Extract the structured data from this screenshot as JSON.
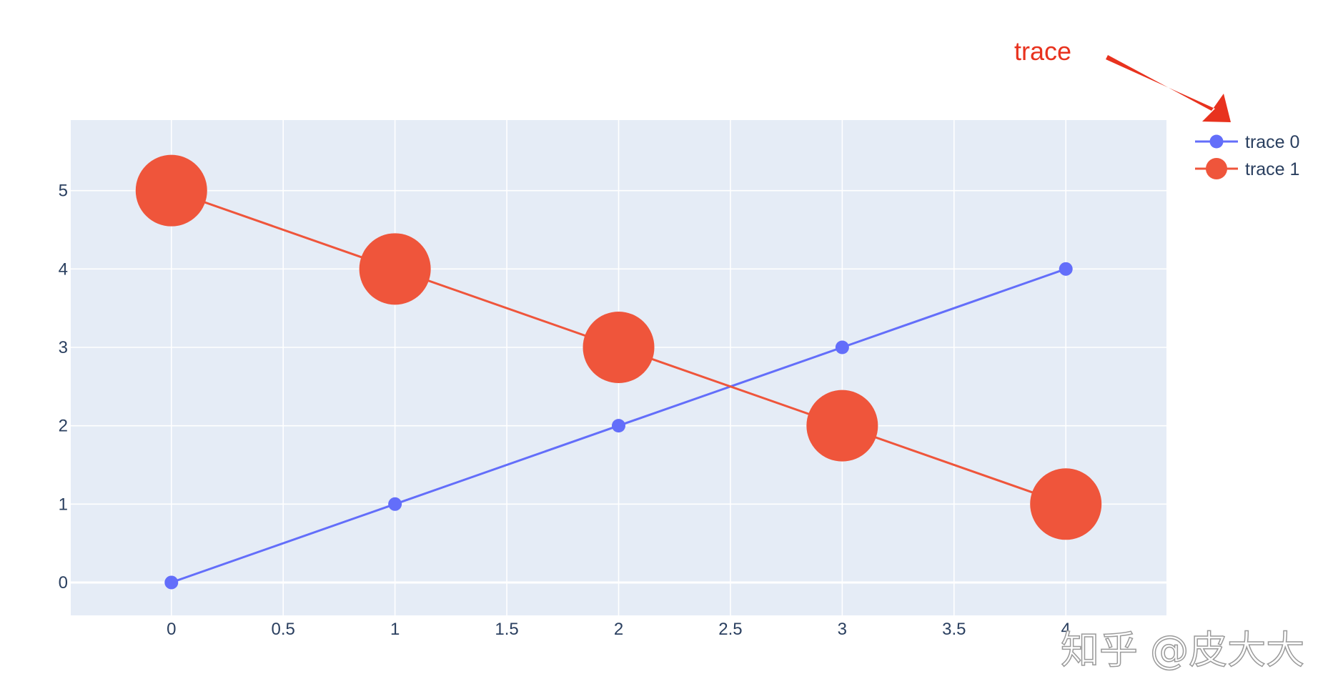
{
  "chart_data": {
    "type": "line",
    "title": "",
    "xlabel": "",
    "ylabel": "",
    "x": [
      0,
      1,
      2,
      3,
      4
    ],
    "xlim": [
      -0.45,
      4.45
    ],
    "ylim": [
      -0.42,
      5.9
    ],
    "x_ticks": [
      0,
      0.5,
      1,
      1.5,
      2,
      2.5,
      3,
      3.5,
      4
    ],
    "x_tick_labels": [
      "0",
      "0.5",
      "1",
      "1.5",
      "2",
      "2.5",
      "3",
      "3.5",
      "4"
    ],
    "y_ticks": [
      0,
      1,
      2,
      3,
      4,
      5
    ],
    "y_tick_labels": [
      "0",
      "1",
      "2",
      "3",
      "4",
      "5"
    ],
    "grid": true,
    "legend_position": "top-right",
    "series": [
      {
        "name": "trace 0",
        "values": [
          0,
          1,
          2,
          3,
          4
        ],
        "color": "#636efa",
        "marker": "small-circle"
      },
      {
        "name": "trace 1",
        "values": [
          5,
          4,
          3,
          2,
          1
        ],
        "color": "#ef553b",
        "marker": "large-circle"
      }
    ],
    "annotations": [
      {
        "text": "trace",
        "color": "#e8321e",
        "target": "legend"
      }
    ]
  },
  "colors": {
    "plot_background": "#e5ecf6",
    "grid": "#ffffff",
    "tick_text": "#2a3f5f",
    "annotation": "#e8321e"
  },
  "watermark": {
    "text": "知乎 @皮大大"
  }
}
